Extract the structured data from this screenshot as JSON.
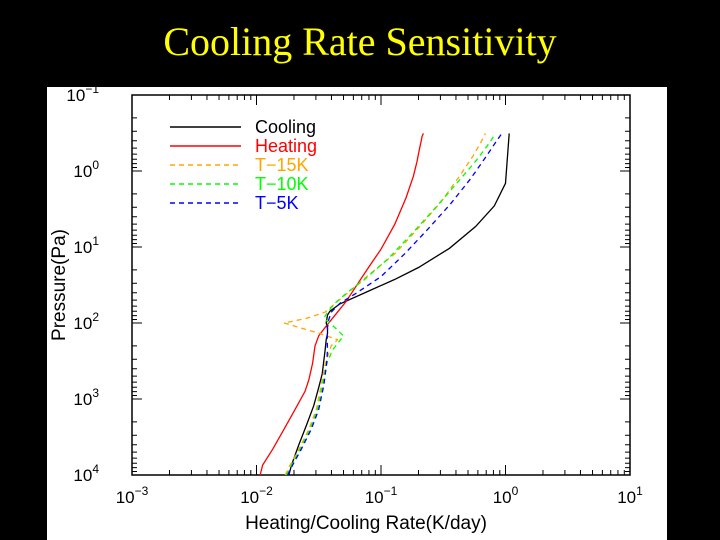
{
  "slide": {
    "title": "Cooling Rate Sensitivity"
  },
  "colors": {
    "background": "#000000",
    "title": "#ffff00",
    "panel": "#ffffff"
  },
  "chart_data": {
    "type": "line",
    "title": "",
    "xlabel": "Heating/Cooling Rate(K/day)",
    "ylabel": "Pressure(Pa)",
    "xscale": "log",
    "yscale": "log",
    "xlim": [
      0.001,
      10
    ],
    "ylim": [
      10000,
      0.1
    ],
    "y_inverted": true,
    "x_ticks": [
      {
        "base": "10",
        "exp": "−3",
        "value": 0.001
      },
      {
        "base": "10",
        "exp": "−2",
        "value": 0.01
      },
      {
        "base": "10",
        "exp": "−1",
        "value": 0.1
      },
      {
        "base": "10",
        "exp": "0",
        "value": 1
      },
      {
        "base": "10",
        "exp": "1",
        "value": 10
      }
    ],
    "y_ticks": [
      {
        "base": "10",
        "exp": "−1",
        "value": 0.1
      },
      {
        "base": "10",
        "exp": "0",
        "value": 1
      },
      {
        "base": "10",
        "exp": "1",
        "value": 10
      },
      {
        "base": "10",
        "exp": "2",
        "value": 100
      },
      {
        "base": "10",
        "exp": "3",
        "value": 1000
      },
      {
        "base": "10",
        "exp": "4",
        "value": 10000
      }
    ],
    "legend_position": "top-left",
    "series": [
      {
        "name": "Cooling",
        "color": "#000000",
        "dash": "solid",
        "x": [
          0.0182,
          0.0191,
          0.0218,
          0.0251,
          0.0288,
          0.0316,
          0.0337,
          0.0346,
          0.0355,
          0.0363,
          0.0372,
          0.0372,
          0.0363,
          0.0372,
          0.0389,
          0.0468,
          0.0794,
          0.129,
          0.2,
          0.355,
          0.575,
          0.813,
          1.0,
          1.07
        ],
        "y": [
          10000,
          7413,
          4073,
          2239,
          1230,
          708,
          468,
          331,
          234,
          166,
          138,
          118,
          100,
          79,
          70,
          56,
          38,
          26.7,
          18.6,
          10.4,
          5.37,
          2.88,
          1.45,
          0.32
        ]
      },
      {
        "name": "Heating",
        "color": "#ff0000",
        "dash": "solid",
        "x": [
          0.0107,
          0.0112,
          0.0135,
          0.0166,
          0.0204,
          0.0245,
          0.0263,
          0.0282,
          0.0295,
          0.0316,
          0.0355,
          0.0427,
          0.0525,
          0.0646,
          0.0794,
          0.1,
          0.129,
          0.159,
          0.182,
          0.195,
          0.204,
          0.209,
          0.214,
          0.219
        ],
        "y": [
          10000,
          7413,
          4571,
          2512,
          1380,
          794,
          562,
          339,
          200,
          148,
          115,
          79,
          52,
          30.9,
          18.6,
          10.7,
          5.01,
          2.24,
          1.17,
          0.74,
          0.51,
          0.42,
          0.35,
          0.32
        ]
      },
      {
        "name": "T−15K",
        "color": "#ffa500",
        "dash": "dashed",
        "x": [
          0.017,
          0.0186,
          0.0219,
          0.0263,
          0.0302,
          0.0331,
          0.0355,
          0.0398,
          0.0447,
          0.0324,
          0.0166,
          0.0251,
          0.0355,
          0.0447,
          0.0562,
          0.0794,
          0.129,
          0.2,
          0.302,
          0.427,
          0.55,
          0.63,
          0.69
        ],
        "y": [
          10000,
          7413,
          4571,
          2512,
          1380,
          661,
          355,
          200,
          166,
          138,
          100,
          87,
          72,
          52,
          38,
          23.4,
          12.3,
          5.62,
          2.57,
          1.17,
          0.63,
          0.43,
          0.32
        ]
      },
      {
        "name": "T−10K",
        "color": "#00ff00",
        "dash": "dashed",
        "x": [
          0.0174,
          0.0191,
          0.0224,
          0.0269,
          0.0309,
          0.0339,
          0.0363,
          0.0407,
          0.05,
          0.0427,
          0.0347,
          0.0371,
          0.0427,
          0.0525,
          0.0724,
          0.115,
          0.178,
          0.275,
          0.417,
          0.589,
          0.741,
          0.832
        ],
        "y": [
          10000,
          7413,
          4571,
          2512,
          1380,
          661,
          355,
          229,
          148,
          115,
          87,
          72,
          55,
          40.7,
          27.5,
          14.1,
          6.61,
          3.02,
          1.38,
          0.71,
          0.43,
          0.32
        ]
      },
      {
        "name": "T−5K",
        "color": "#0000ff",
        "dash": "dashed",
        "x": [
          0.0178,
          0.0195,
          0.0229,
          0.0275,
          0.0316,
          0.0347,
          0.0365,
          0.0372,
          0.037,
          0.0372,
          0.038,
          0.0398,
          0.0468,
          0.0631,
          0.1,
          0.155,
          0.24,
          0.363,
          0.525,
          0.692,
          0.832,
          0.933
        ],
        "y": [
          10000,
          7413,
          4571,
          2512,
          1380,
          661,
          355,
          229,
          166,
          115,
          91,
          72,
          55,
          40.7,
          24.5,
          12.3,
          5.75,
          2.69,
          1.26,
          0.66,
          0.42,
          0.32
        ]
      }
    ]
  }
}
